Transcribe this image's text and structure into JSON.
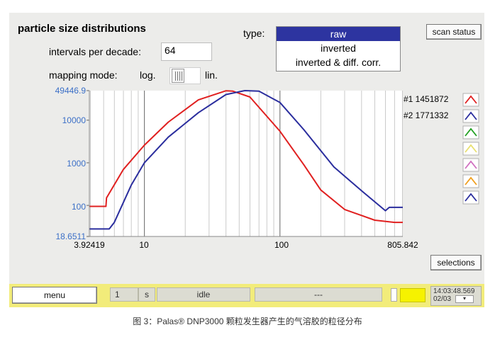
{
  "panel": {
    "title": "particle size distributions",
    "intervals_label": "intervals per decade:",
    "intervals_value": "64",
    "mapping_label": "mapping mode:",
    "mapping_log": "log.",
    "mapping_lin": "lin.",
    "type_label": "type:",
    "type_options": [
      "raw",
      "inverted",
      "inverted & diff. corr."
    ],
    "type_selected": "raw",
    "scan_status_button": "scan status",
    "selections_button": "selections"
  },
  "status_bar": {
    "menu_button": "menu",
    "interval_value": "1",
    "interval_unit": "s",
    "state": "idle",
    "message": "---",
    "time": "14:03:48.569",
    "date": "02/03"
  },
  "caption": "图 3：Palas® DNP3000 颗粒发生器产生的气溶胶的粒径分布",
  "colors": {
    "series_red": "#e02020",
    "series_blue": "#2b2e9e",
    "selected_bg": "#2d34a0",
    "status_bg": "#f2ec7a",
    "axis_label_blue": "#3b6fc7"
  },
  "legend_swatch_colors": [
    "#e02020",
    "#2b2e9e",
    "#22a022",
    "#e8e070",
    "#d070c0",
    "#f0a020",
    "#2b2e9e"
  ],
  "chart_data": {
    "type": "line",
    "x_scale": "log",
    "y_scale": "log",
    "xlim": [
      3.92419,
      805.842
    ],
    "ylim": [
      18.6511,
      49446.9
    ],
    "x_tick_labels": [
      "3.92419",
      "10",
      "100",
      "805.842"
    ],
    "y_tick_labels": [
      "49446.9",
      "10000",
      "1000",
      "100",
      "18.6511"
    ],
    "grid": true,
    "legend_position": "right",
    "series": [
      {
        "name": "#1 1451872",
        "color": "#e02020",
        "x": [
          3.92419,
          5.2,
          5.25,
          7,
          10,
          15,
          25,
          40,
          45,
          60,
          100,
          150,
          200,
          300,
          500,
          700,
          805.842
        ],
        "y": [
          95,
          95,
          150,
          700,
          2600,
          9000,
          30000,
          49000,
          48000,
          35000,
          5500,
          900,
          230,
          80,
          45,
          40,
          40
        ]
      },
      {
        "name": "#2 1771332",
        "color": "#2b2e9e",
        "x": [
          3.92419,
          5.5,
          6,
          8,
          10,
          15,
          25,
          40,
          55,
          70,
          100,
          150,
          250,
          400,
          600,
          640,
          805.842
        ],
        "y": [
          28,
          28,
          40,
          300,
          1000,
          4000,
          15000,
          40000,
          49400,
          48000,
          26000,
          6000,
          800,
          220,
          75,
          90,
          90
        ]
      }
    ]
  }
}
